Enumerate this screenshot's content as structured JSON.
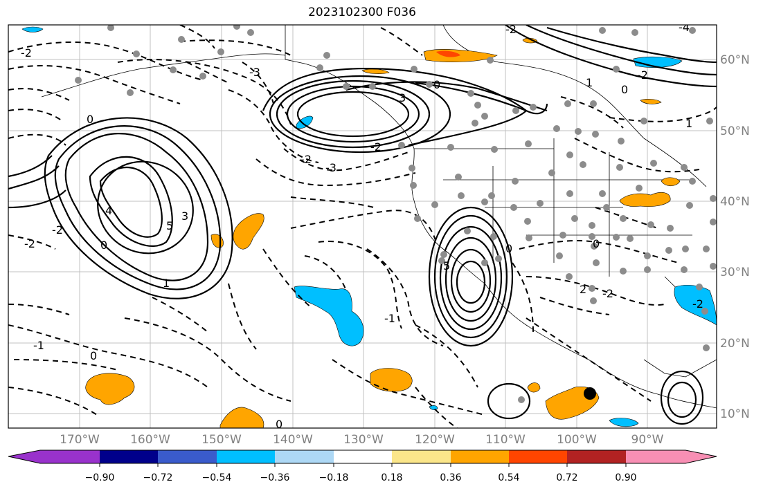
{
  "title": "2023102300 F036",
  "map": {
    "lon_labels": [
      "170°W",
      "160°W",
      "150°W",
      "140°W",
      "130°W",
      "120°W",
      "110°W",
      "100°W",
      "90°W"
    ],
    "lat_labels": [
      "60°N",
      "50°N",
      "40°N",
      "30°N",
      "20°N",
      "10°N"
    ],
    "contour_labels": [
      "-2",
      "-3",
      "0",
      "-1",
      "1",
      "3",
      "5",
      "4",
      "-4",
      "2"
    ]
  },
  "colorbar": {
    "colors": [
      "#9932cc",
      "#00008b",
      "#3a5bcc",
      "#00bfff",
      "#add8f5",
      "#ffffff",
      "#fbe68a",
      "#ffa500",
      "#ff4500",
      "#b22222",
      "#f88fb4"
    ],
    "tick_labels": [
      "−0.90",
      "−0.72",
      "−0.54",
      "−0.36",
      "−0.18",
      "0.18",
      "0.36",
      "0.54",
      "0.72",
      "0.90"
    ]
  }
}
